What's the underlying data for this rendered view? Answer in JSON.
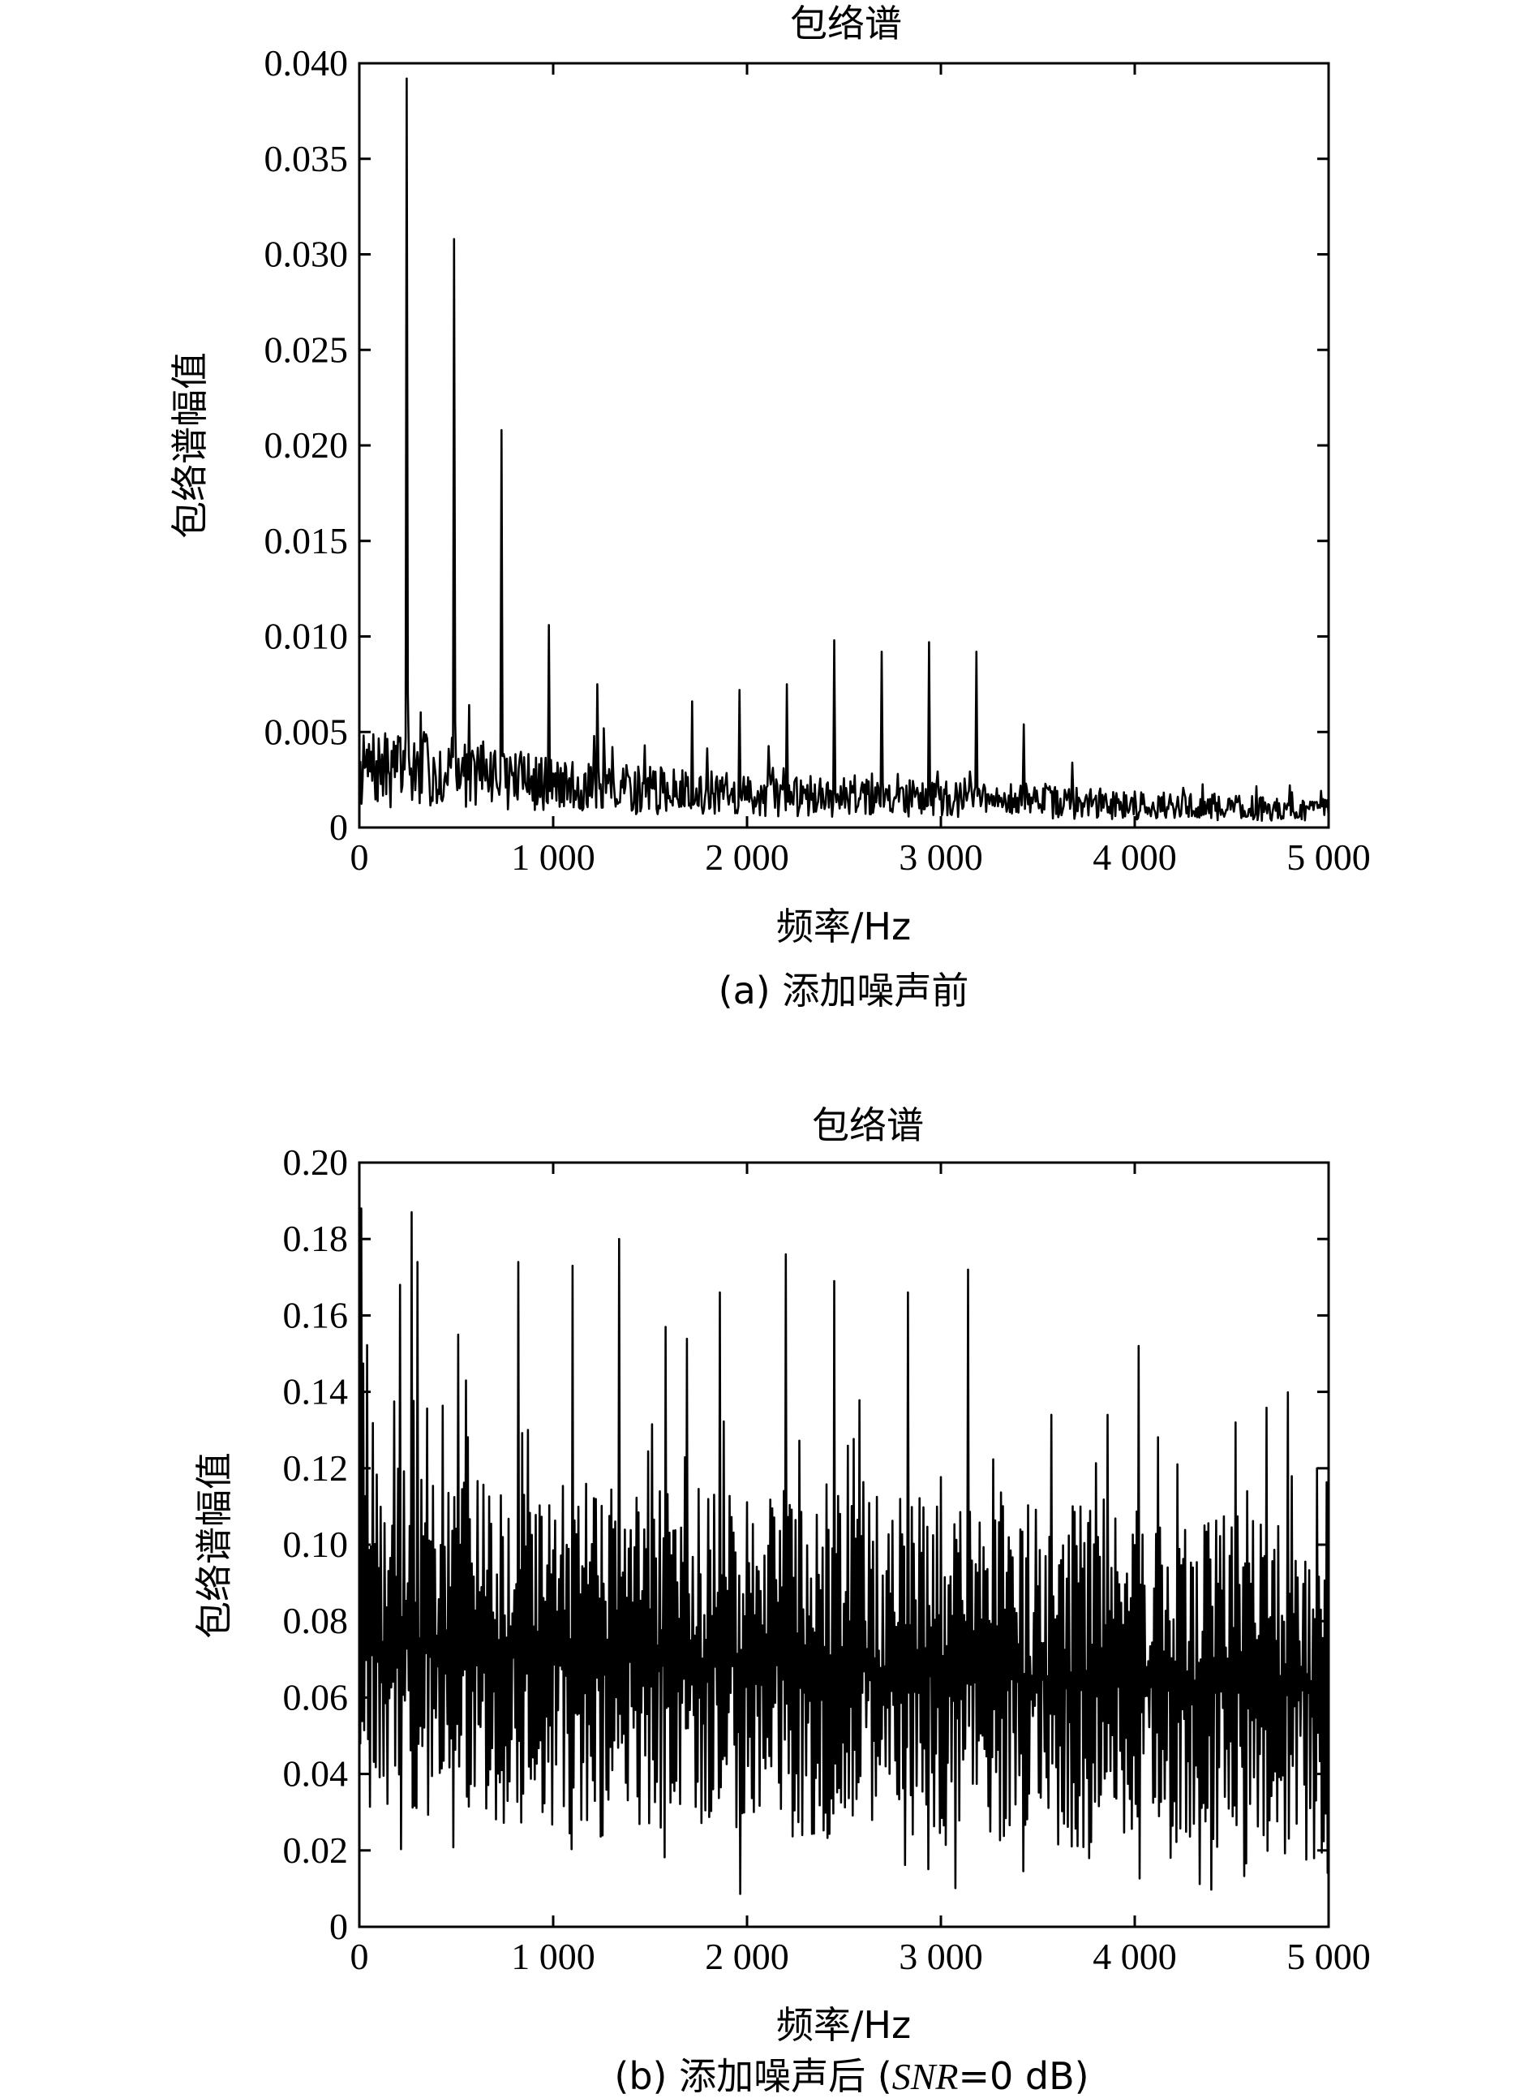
{
  "chart_data": [
    {
      "type": "line",
      "title": "包络谱",
      "xlabel": "频率/Hz",
      "ylabel": "包络谱幅值",
      "caption": "(a) 添加噪声前",
      "xlim": [
        0,
        5000
      ],
      "ylim": [
        0,
        0.04
      ],
      "xticks": [
        "0",
        "1 000",
        "2 000",
        "3 000",
        "4 000",
        "5 000"
      ],
      "yticks": [
        "0",
        "0.005",
        "0.010",
        "0.015",
        "0.020",
        "0.025",
        "0.030",
        "0.035",
        "0.040"
      ],
      "grid": false,
      "line_color": "#000000",
      "peaks": [
        {
          "x": 245,
          "y": 0.0392
        },
        {
          "x": 490,
          "y": 0.0308
        },
        {
          "x": 735,
          "y": 0.0208
        },
        {
          "x": 980,
          "y": 0.0106
        },
        {
          "x": 1225,
          "y": 0.0075
        },
        {
          "x": 1470,
          "y": 0.0043
        },
        {
          "x": 1715,
          "y": 0.0066
        },
        {
          "x": 1960,
          "y": 0.0072
        },
        {
          "x": 2205,
          "y": 0.0075
        },
        {
          "x": 2450,
          "y": 0.0098
        },
        {
          "x": 2695,
          "y": 0.0092
        },
        {
          "x": 2940,
          "y": 0.0097
        },
        {
          "x": 3185,
          "y": 0.0092
        },
        {
          "x": 3430,
          "y": 0.0054
        },
        {
          "x": 3675,
          "y": 0.0034
        }
      ],
      "noise_floor": [
        {
          "x": 0,
          "y": 0.003
        },
        {
          "x": 500,
          "y": 0.003
        },
        {
          "x": 1000,
          "y": 0.0022
        },
        {
          "x": 2000,
          "y": 0.0017
        },
        {
          "x": 3000,
          "y": 0.0015
        },
        {
          "x": 4000,
          "y": 0.0012
        },
        {
          "x": 5000,
          "y": 0.0009
        }
      ]
    },
    {
      "type": "line",
      "title": "包络谱",
      "xlabel": "频率/Hz",
      "ylabel": "包络谱幅值",
      "caption_main": "(b) 添加噪声后 (",
      "caption_italic": "SNR",
      "caption_tail": "=0 dB)",
      "xlim": [
        0,
        5000
      ],
      "ylim": [
        0,
        0.2
      ],
      "xticks": [
        "0",
        "1 000",
        "2 000",
        "3 000",
        "4 000",
        "5 000"
      ],
      "yticks": [
        "0",
        "0.02",
        "0.04",
        "0.06",
        "0.08",
        "0.10",
        "0.12",
        "0.14",
        "0.16",
        "0.18",
        "0.20"
      ],
      "grid": false,
      "line_color": "#000000",
      "spikes": [
        {
          "x": 10,
          "y": 0.188
        },
        {
          "x": 210,
          "y": 0.168
        },
        {
          "x": 270,
          "y": 0.187
        },
        {
          "x": 300,
          "y": 0.174
        },
        {
          "x": 510,
          "y": 0.155
        },
        {
          "x": 820,
          "y": 0.174
        },
        {
          "x": 1100,
          "y": 0.173
        },
        {
          "x": 1340,
          "y": 0.18
        },
        {
          "x": 1580,
          "y": 0.157
        },
        {
          "x": 1860,
          "y": 0.166
        },
        {
          "x": 2200,
          "y": 0.176
        },
        {
          "x": 2450,
          "y": 0.169
        },
        {
          "x": 2830,
          "y": 0.166
        },
        {
          "x": 3140,
          "y": 0.172
        },
        {
          "x": 3570,
          "y": 0.134
        },
        {
          "x": 3860,
          "y": 0.134
        },
        {
          "x": 4020,
          "y": 0.152
        },
        {
          "x": 4520,
          "y": 0.132
        },
        {
          "x": 4940,
          "y": 0.12
        }
      ],
      "mean_level": 0.062
    }
  ]
}
